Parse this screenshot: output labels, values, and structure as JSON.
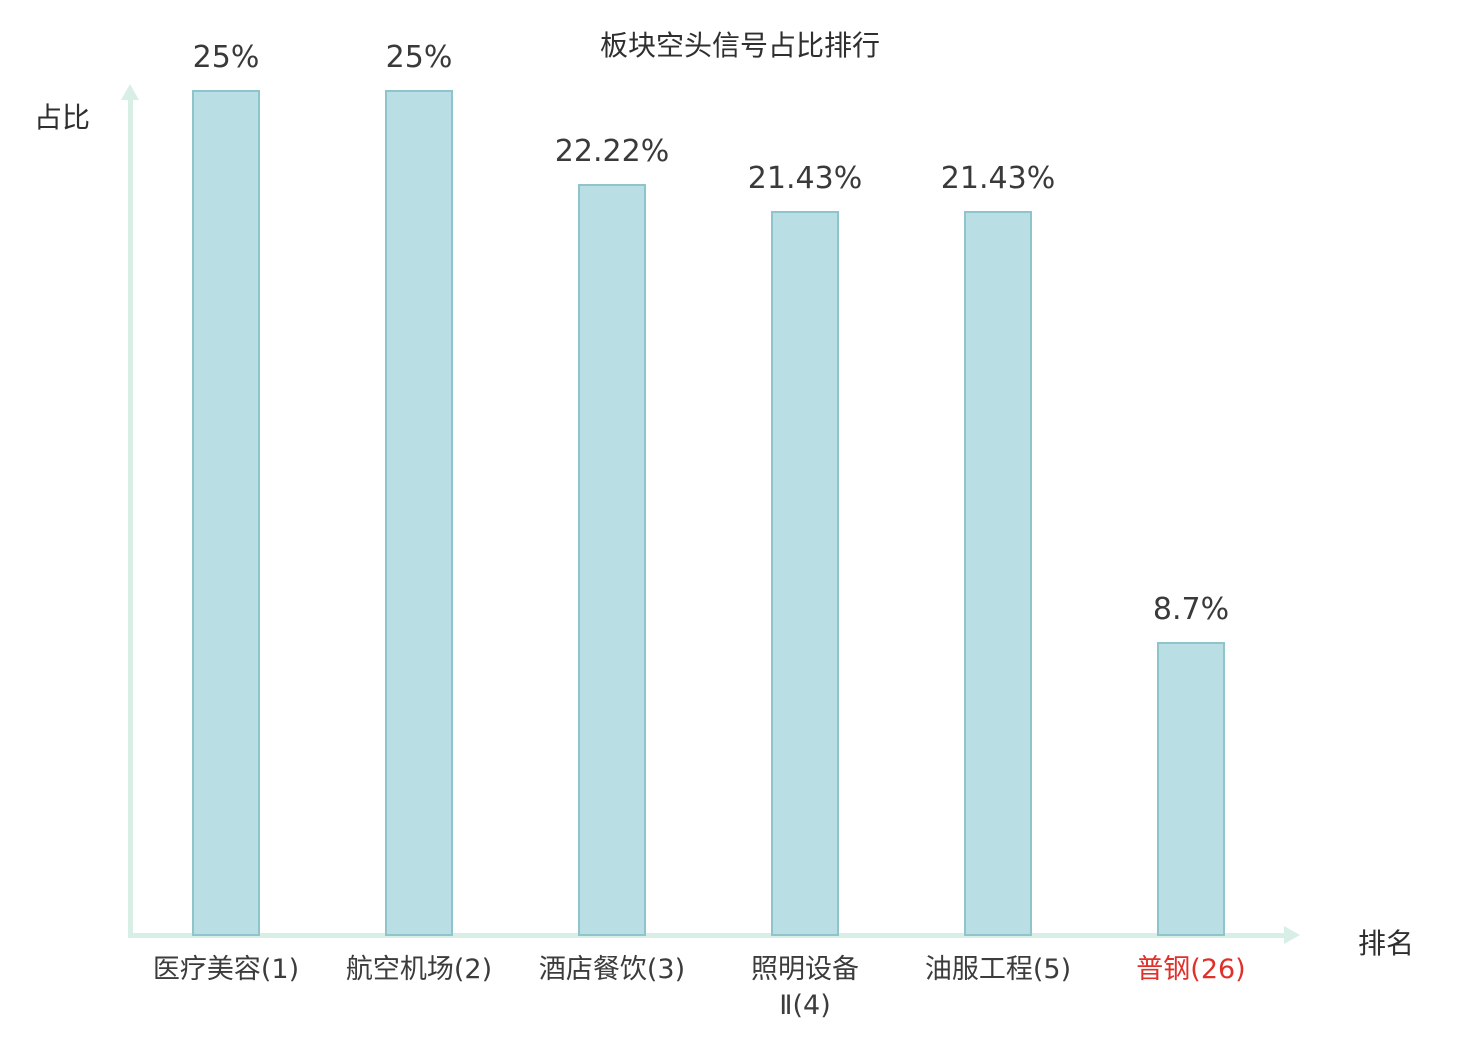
{
  "chart_data": {
    "type": "bar",
    "title": "板块空头信号占比排行",
    "xlabel": "排名",
    "ylabel": "占比",
    "ylim": [
      0,
      25
    ],
    "categories": [
      "医疗美容(1)",
      "航空机场(2)",
      "酒店餐饮(3)",
      "照明设备\nⅡ(4)",
      "油服工程(5)",
      "普钢(26)"
    ],
    "values": [
      25,
      25,
      22.22,
      21.43,
      21.43,
      8.7
    ],
    "value_labels": [
      "25%",
      "25%",
      "22.22%",
      "21.43%",
      "21.43%",
      "8.7%"
    ],
    "highlighted_category_index": 5,
    "legend": "none",
    "grid": "off",
    "colors": {
      "bar_fill": "#b9dee3",
      "bar_border": "#8fc4cc",
      "axis": "#d8efe5",
      "text": "#3a3a3a",
      "highlight": "#e0302a"
    }
  }
}
